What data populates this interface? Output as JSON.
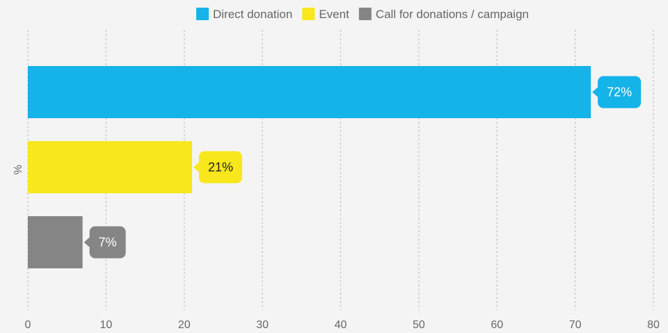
{
  "chart_data": {
    "type": "bar",
    "orientation": "horizontal",
    "title": "",
    "xlabel": "",
    "ylabel": "%",
    "xlim": [
      0,
      80
    ],
    "xticks": [
      0,
      10,
      20,
      30,
      40,
      50,
      60,
      70,
      80
    ],
    "grid": "vertical-dashed",
    "legend_position": "top-center",
    "series": [
      {
        "name": "Direct donation",
        "value": 72,
        "label": "72%",
        "color": "#14b3e8",
        "label_text_color": "#ffffff"
      },
      {
        "name": "Event",
        "value": 21,
        "label": "21%",
        "color": "#f7e71c",
        "label_text_color": "#222222"
      },
      {
        "name": "Call for donations / campaign",
        "value": 7,
        "label": "7%",
        "color": "#858585",
        "label_text_color": "#ffffff"
      }
    ]
  }
}
